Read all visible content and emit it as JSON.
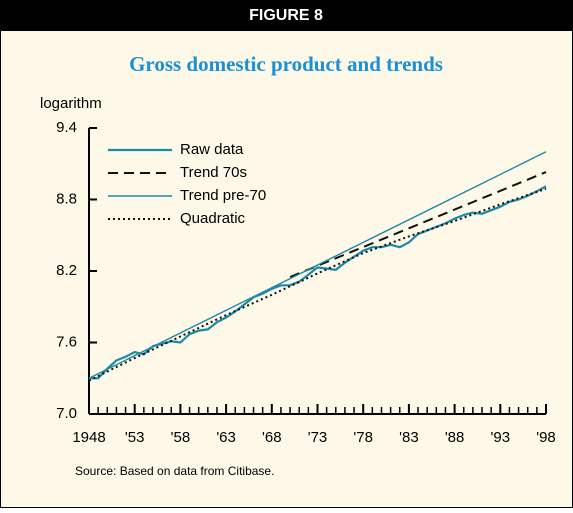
{
  "header": "FIGURE 8",
  "chart_data": {
    "type": "line",
    "title": "Gross domestic product and trends",
    "y_label": "logarithm",
    "source": "Source: Based on data from Citibase.",
    "xlim": [
      1948,
      1998
    ],
    "xticks": [
      {
        "value": 1948,
        "label": "1948"
      },
      {
        "value": 1953,
        "label": "'53"
      },
      {
        "value": 1958,
        "label": "'58"
      },
      {
        "value": 1963,
        "label": "'63"
      },
      {
        "value": 1968,
        "label": "'68"
      },
      {
        "value": 1973,
        "label": "'73"
      },
      {
        "value": 1978,
        "label": "'78"
      },
      {
        "value": 1983,
        "label": "'83"
      },
      {
        "value": 1988,
        "label": "'88"
      },
      {
        "value": 1993,
        "label": "'93"
      },
      {
        "value": 1998,
        "label": "'98"
      }
    ],
    "xminorticks": [
      1949,
      1950,
      1951,
      1952,
      1954,
      1955,
      1956,
      1957,
      1959,
      1960,
      1961,
      1962,
      1964,
      1965,
      1966,
      1967,
      1969,
      1970,
      1971,
      1972,
      1974,
      1975,
      1976,
      1977,
      1979,
      1980,
      1981,
      1982,
      1984,
      1985,
      1986,
      1987,
      1989,
      1990,
      1991,
      1992,
      1994,
      1995,
      1996,
      1997
    ],
    "ylim": [
      7.0,
      9.4
    ],
    "yticks": [
      {
        "value": 7.0,
        "label": "7.0"
      },
      7.6,
      8.2,
      8.8,
      9.4
    ],
    "legend": "upper left",
    "series": [
      {
        "name": "Raw data",
        "color": "#1c8aa6",
        "width": 2.2,
        "dash": "none",
        "x": [
          1948,
          1949,
          1950,
          1951,
          1952,
          1953,
          1954,
          1955,
          1956,
          1957,
          1958,
          1959,
          1960,
          1961,
          1962,
          1963,
          1964,
          1965,
          1966,
          1967,
          1968,
          1969,
          1970,
          1971,
          1972,
          1973,
          1974,
          1975,
          1976,
          1977,
          1978,
          1979,
          1980,
          1981,
          1982,
          1983,
          1984,
          1985,
          1986,
          1987,
          1988,
          1989,
          1990,
          1991,
          1992,
          1993,
          1994,
          1995,
          1996,
          1997,
          1998
        ],
        "values": [
          7.3,
          7.3,
          7.38,
          7.45,
          7.48,
          7.52,
          7.5,
          7.57,
          7.59,
          7.61,
          7.6,
          7.67,
          7.7,
          7.71,
          7.77,
          7.81,
          7.86,
          7.92,
          7.98,
          8.01,
          8.05,
          8.08,
          8.08,
          8.11,
          8.17,
          8.23,
          8.22,
          8.21,
          8.27,
          8.32,
          8.37,
          8.4,
          8.4,
          8.42,
          8.4,
          8.44,
          8.51,
          8.54,
          8.57,
          8.6,
          8.64,
          8.67,
          8.69,
          8.68,
          8.71,
          8.74,
          8.78,
          8.8,
          8.83,
          8.87,
          8.91
        ]
      },
      {
        "name": "Trend 70s",
        "color": "#111111",
        "width": 2,
        "dash": "10 6",
        "x": [
          1970,
          1998
        ],
        "values": [
          8.15,
          9.03
        ]
      },
      {
        "name": "Trend pre-70",
        "color": "#1c8aa6",
        "width": 1.4,
        "dash": "none",
        "x": [
          1948,
          1998
        ],
        "values": [
          7.3,
          9.2
        ]
      },
      {
        "name": "Quadratic",
        "color": "#111111",
        "width": 2,
        "dash": "2 3",
        "x": [
          1948,
          1953,
          1958,
          1963,
          1968,
          1973,
          1978,
          1983,
          1988,
          1993,
          1998
        ],
        "values": [
          7.28,
          7.47,
          7.65,
          7.83,
          8.0,
          8.18,
          8.35,
          8.49,
          8.62,
          8.76,
          8.89
        ]
      }
    ]
  }
}
